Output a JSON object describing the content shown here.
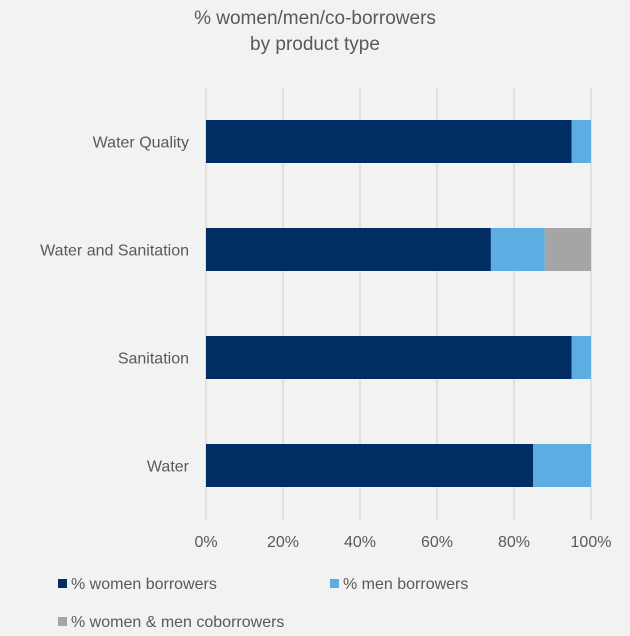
{
  "chart_data": {
    "type": "bar",
    "orientation": "horizontal",
    "stacked": true,
    "title": [
      "% women/men/co-borrowers",
      "by product type"
    ],
    "categories": [
      "Water Quality",
      "Water and Sanitation",
      "Sanitation",
      "Water"
    ],
    "series": [
      {
        "name": "% women borrowers",
        "color": "#002d62",
        "values": [
          95,
          74,
          95,
          85
        ]
      },
      {
        "name": "% men borrowers",
        "color": "#5dade2",
        "values": [
          5,
          14,
          5,
          15
        ]
      },
      {
        "name": "% women & men coborrowers",
        "color": "#a5a5a5",
        "values": [
          0,
          12,
          0,
          0
        ]
      }
    ],
    "xlim": [
      0,
      100
    ],
    "x_ticks": [
      "0%",
      "20%",
      "40%",
      "60%",
      "80%",
      "100%"
    ],
    "grid": true,
    "legend_position": "bottom"
  }
}
